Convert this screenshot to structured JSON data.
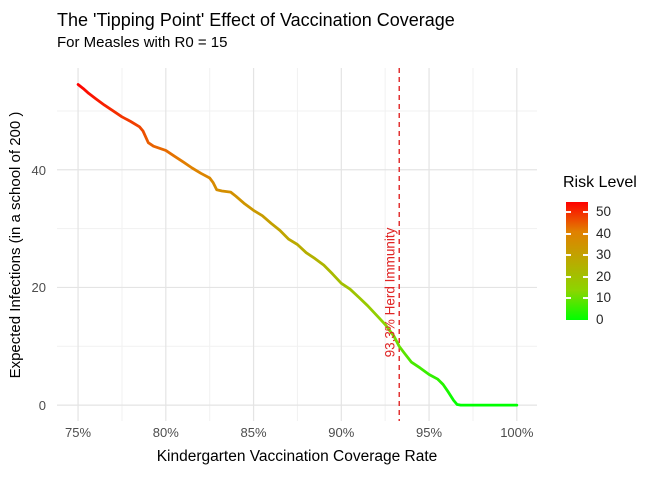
{
  "chart_data": {
    "type": "line",
    "title": "The 'Tipping Point' Effect of Vaccination Coverage",
    "subtitle": "For Measles with R0 = 15",
    "xlabel": "Kindergarten Vaccination Coverage Rate",
    "ylabel": "Expected Infections (in a school of 200 )",
    "x_ticks": {
      "values": [
        75,
        80,
        85,
        90,
        95,
        100
      ],
      "labels": [
        "75%",
        "80%",
        "85%",
        "90%",
        "95%",
        "100%"
      ],
      "minor": [
        77.5,
        82.5,
        87.5,
        92.5,
        97.5
      ]
    },
    "y_ticks": {
      "values": [
        0,
        20,
        40
      ],
      "labels": [
        "0",
        "20",
        "40"
      ],
      "minor": [
        10,
        30,
        50
      ]
    },
    "x_domain": [
      73.8,
      101.15
    ],
    "y_domain": [
      -2.7,
      57.3
    ],
    "grid": true,
    "legend_position": "right",
    "series": [
      {
        "name": "expected-infections",
        "points": [
          [
            75.0,
            54.5
          ],
          [
            75.3,
            53.8
          ],
          [
            75.6,
            53.0
          ],
          [
            76.0,
            52.1
          ],
          [
            76.5,
            51.0
          ],
          [
            77.0,
            50.0
          ],
          [
            77.5,
            49.0
          ],
          [
            78.0,
            48.2
          ],
          [
            78.5,
            47.3
          ],
          [
            78.7,
            46.6
          ],
          [
            79.0,
            44.6
          ],
          [
            79.3,
            44.0
          ],
          [
            80.0,
            43.3
          ],
          [
            80.5,
            42.3
          ],
          [
            81.0,
            41.3
          ],
          [
            81.5,
            40.3
          ],
          [
            82.0,
            39.4
          ],
          [
            82.5,
            38.6
          ],
          [
            82.7,
            37.8
          ],
          [
            82.9,
            36.6
          ],
          [
            83.2,
            36.4
          ],
          [
            83.7,
            36.2
          ],
          [
            84.0,
            35.5
          ],
          [
            84.5,
            34.2
          ],
          [
            85.0,
            33.1
          ],
          [
            85.5,
            32.2
          ],
          [
            86.0,
            30.9
          ],
          [
            86.5,
            29.7
          ],
          [
            87.0,
            28.2
          ],
          [
            87.5,
            27.3
          ],
          [
            88.0,
            25.9
          ],
          [
            88.5,
            24.9
          ],
          [
            89.0,
            23.8
          ],
          [
            89.5,
            22.3
          ],
          [
            90.0,
            20.7
          ],
          [
            90.5,
            19.7
          ],
          [
            91.0,
            18.3
          ],
          [
            91.5,
            16.9
          ],
          [
            92.0,
            15.3
          ],
          [
            92.5,
            13.7
          ],
          [
            93.0,
            11.7
          ],
          [
            93.3,
            10.0
          ],
          [
            93.6,
            8.8
          ],
          [
            94.0,
            7.3
          ],
          [
            94.5,
            6.3
          ],
          [
            95.0,
            5.2
          ],
          [
            95.5,
            4.4
          ],
          [
            95.8,
            3.5
          ],
          [
            96.1,
            2.2
          ],
          [
            96.4,
            0.8
          ],
          [
            96.6,
            0.1
          ],
          [
            96.8,
            0.0
          ],
          [
            97.5,
            0.0
          ],
          [
            98.5,
            0.0
          ],
          [
            99.5,
            0.0
          ],
          [
            100.0,
            0.0
          ]
        ]
      }
    ],
    "annotation": {
      "label": "93.3% Herd Immunity",
      "x": 93.3
    },
    "legend": {
      "title": "Risk Level",
      "tick_values": [
        50,
        40,
        30,
        20,
        10,
        0
      ],
      "tick_labels": [
        "50",
        "40",
        "30",
        "20",
        "10",
        "0"
      ],
      "scale_min": 0,
      "scale_max": 54.6
    },
    "colors": {
      "low": "#00FF00",
      "high": "#FF0000",
      "ramp": [
        [
          0,
          "#00FF00"
        ],
        [
          0.25,
          "#8CD500"
        ],
        [
          0.5,
          "#BAAA00"
        ],
        [
          0.75,
          "#E18000"
        ],
        [
          1,
          "#FF0000"
        ]
      ],
      "reference": "#E02626",
      "grid_major": "#E4E4E4",
      "grid_minor": "#F1F1F1",
      "tick_text": "#4D4D4D",
      "background": "#FFFFFF"
    }
  }
}
